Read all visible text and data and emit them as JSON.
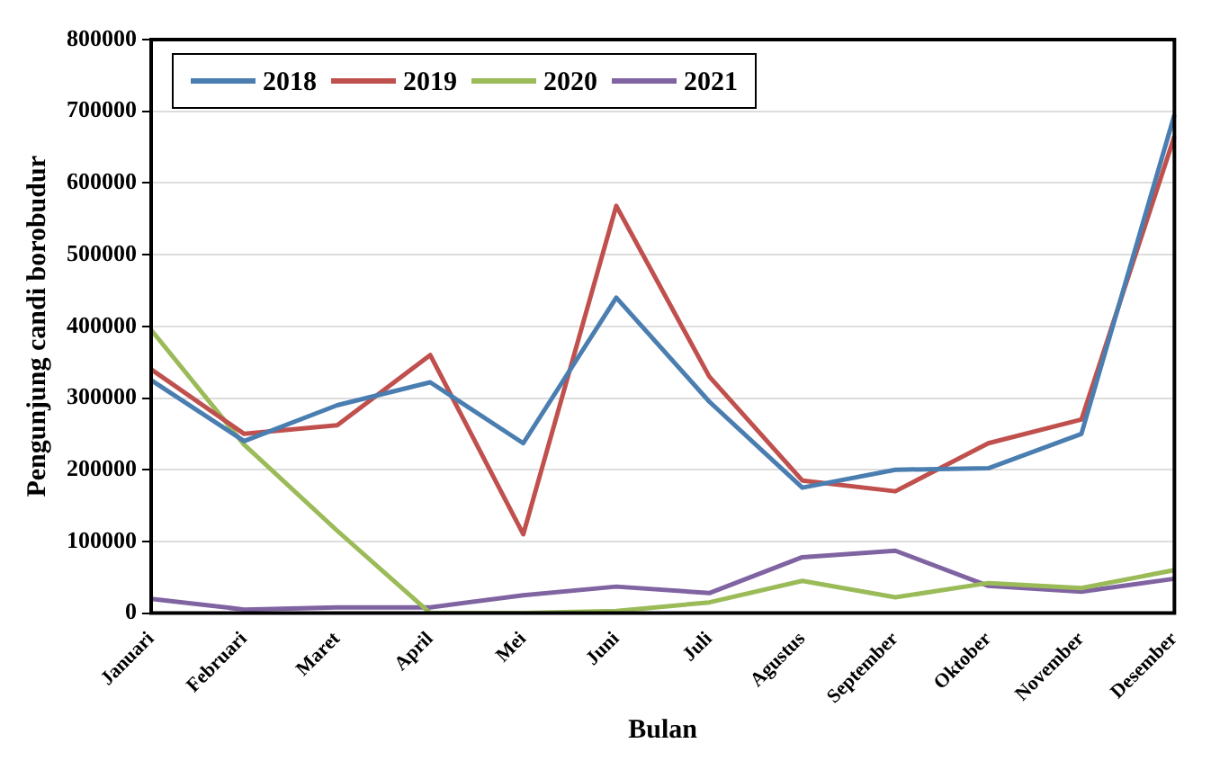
{
  "chart_data": {
    "type": "line",
    "xlabel": "Bulan",
    "ylabel": "Pengunjung candi borobudur",
    "categories": [
      "Januari",
      "Februari",
      "Maret",
      "April",
      "Mei",
      "Juni",
      "Juli",
      "Agustus",
      "September",
      "Oktober",
      "November",
      "Desember"
    ],
    "series": [
      {
        "name": "2018",
        "color": "#4a7eb0",
        "values": [
          325000,
          240000,
          290000,
          322000,
          237000,
          440000,
          295000,
          175000,
          200000,
          202000,
          250000,
          695000
        ]
      },
      {
        "name": "2019",
        "color": "#c0504d",
        "values": [
          340000,
          250000,
          262000,
          360000,
          110000,
          568000,
          330000,
          185000,
          170000,
          237000,
          270000,
          665000
        ]
      },
      {
        "name": "2020",
        "color": "#9bbb59",
        "values": [
          395000,
          235000,
          115000,
          0,
          0,
          3000,
          15000,
          45000,
          22000,
          42000,
          35000,
          60000
        ]
      },
      {
        "name": "2021",
        "color": "#8064a2",
        "values": [
          20000,
          5000,
          8000,
          8000,
          25000,
          37000,
          28000,
          78000,
          87000,
          38000,
          30000,
          48000
        ]
      }
    ],
    "ylim": [
      0,
      800000
    ],
    "yticks": [
      0,
      100000,
      200000,
      300000,
      400000,
      500000,
      600000,
      700000,
      800000
    ],
    "grid": "y",
    "legend": "top left",
    "marker": "none",
    "line_style": "solid"
  }
}
